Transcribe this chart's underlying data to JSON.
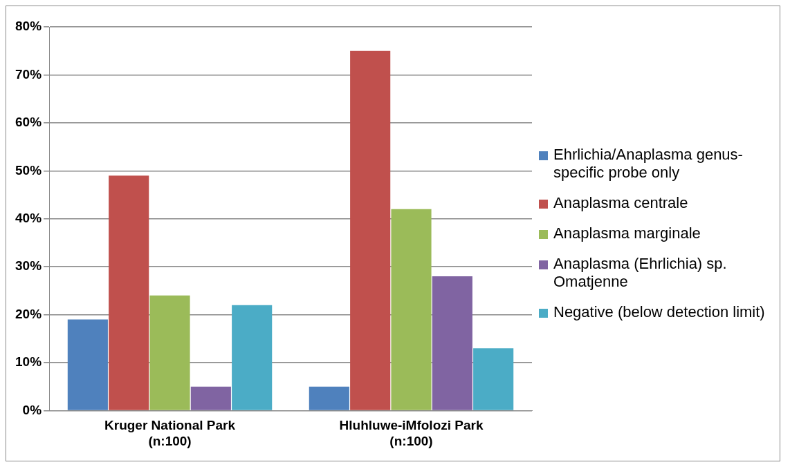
{
  "chart_data": {
    "type": "bar",
    "categories": [
      "Kruger National Park (n:100)",
      "Hluhluwe-iMfolozi Park (n:100)"
    ],
    "series": [
      {
        "name": "Ehrlichia/Anaplasma genus-specific probe only",
        "color": "#4f81bd",
        "values": [
          19,
          5
        ]
      },
      {
        "name": "Anaplasma centrale",
        "color": "#c0504d",
        "values": [
          49,
          75
        ]
      },
      {
        "name": "Anaplasma marginale",
        "color": "#9bbb59",
        "values": [
          24,
          42
        ]
      },
      {
        "name": "Anaplasma (Ehrlichia) sp. Omatjenne",
        "color": "#8064a2",
        "values": [
          5,
          28
        ]
      },
      {
        "name": "Negative (below detection limit)",
        "color": "#4bacc6",
        "values": [
          22,
          13
        ]
      }
    ],
    "ylim": [
      0,
      80
    ],
    "yticks": [
      {
        "value": 0,
        "label": "0%"
      },
      {
        "value": 10,
        "label": "10%"
      },
      {
        "value": 20,
        "label": "20%"
      },
      {
        "value": 30,
        "label": "30%"
      },
      {
        "value": 40,
        "label": "40%"
      },
      {
        "value": 50,
        "label": "50%"
      },
      {
        "value": 60,
        "label": "60%"
      },
      {
        "value": 70,
        "label": "70%"
      },
      {
        "value": 80,
        "label": "80%"
      }
    ],
    "grid": "y",
    "legend": "right"
  }
}
